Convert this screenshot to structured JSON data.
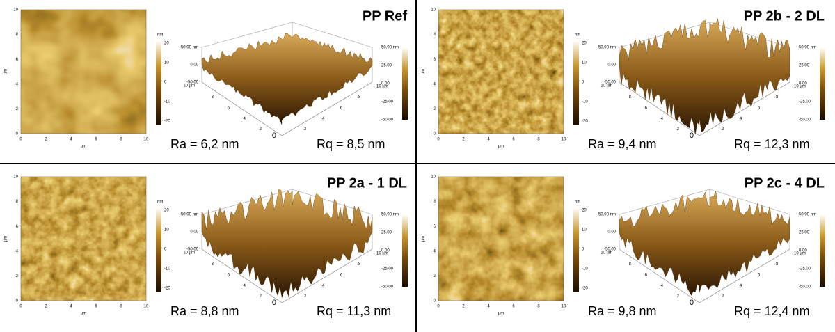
{
  "common": {
    "map_ticks": [
      "0",
      "2",
      "4",
      "6",
      "8",
      "10"
    ],
    "map_unit": "µm",
    "colorbar_unit": "nm",
    "colorbar_ticks": [
      "20",
      "10",
      "0",
      "-10",
      "-20"
    ],
    "surface_z_labels": [
      "50.00 nm",
      "0.00",
      "-50.00"
    ],
    "surface_depth_ticks": [
      "8",
      "6",
      "4",
      "2",
      "0"
    ],
    "surface_width_ticks": [
      "2",
      "4",
      "6",
      "8",
      "10 µm"
    ],
    "surface_corner_label": "10 µm",
    "surface_scale_ticks": [
      "50.00 nm",
      "25.00",
      "0.00",
      "-25.00",
      "-50.00"
    ]
  },
  "panels": [
    {
      "title": "PP Ref",
      "ra": "Ra = 6,2 nm",
      "rq": "Rq = 8,5 nm"
    },
    {
      "title": "PP 2b - 2 DL",
      "ra": "Ra = 9,4 nm",
      "rq": "Rq = 12,3 nm"
    },
    {
      "title": "PP 2a - 1 DL",
      "ra": "Ra = 8,8 nm",
      "rq": "Rq = 11,3 nm"
    },
    {
      "title": "PP 2c - 4 DL",
      "ra": "Ra = 9,8 nm",
      "rq": "Rq = 12,4 nm"
    }
  ]
}
